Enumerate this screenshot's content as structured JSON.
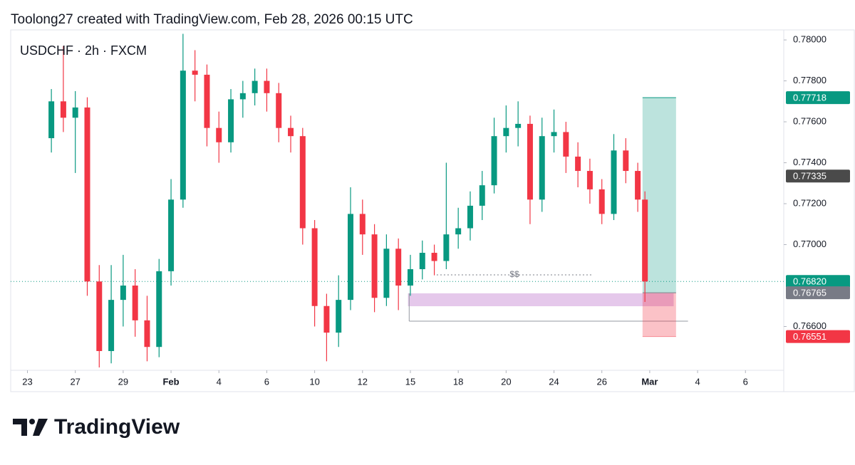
{
  "header": "Toolong27 created with TradingView.com, Feb 28, 2026 00:15 UTC",
  "chart_data": {
    "type": "candlestick",
    "title": "USDCHF · 2h · FXCM",
    "up_color": "#089981",
    "down_color": "#f23645",
    "xlim": [
      -0.7,
      31.6
    ],
    "ylim": [
      0.76386,
      0.78049
    ],
    "xticks": [
      {
        "value": 0,
        "label": "23"
      },
      {
        "value": 2,
        "label": "27"
      },
      {
        "value": 4,
        "label": "29"
      },
      {
        "value": 6,
        "label": "Feb",
        "bold": true
      },
      {
        "value": 8,
        "label": "4"
      },
      {
        "value": 10,
        "label": "6"
      },
      {
        "value": 12,
        "label": "10"
      },
      {
        "value": 14,
        "label": "12"
      },
      {
        "value": 16,
        "label": "15"
      },
      {
        "value": 18,
        "label": "18"
      },
      {
        "value": 20,
        "label": "20"
      },
      {
        "value": 22,
        "label": "24"
      },
      {
        "value": 24,
        "label": "26"
      },
      {
        "value": 26,
        "label": "Mar",
        "bold": true
      },
      {
        "value": 28,
        "label": "4"
      },
      {
        "value": 30,
        "label": "6"
      }
    ],
    "yticks": [
      {
        "value": 0.78,
        "label": "0.78000"
      },
      {
        "value": 0.778,
        "label": "0.77800"
      },
      {
        "value": 0.776,
        "label": "0.77600"
      },
      {
        "value": 0.774,
        "label": "0.77400"
      },
      {
        "value": 0.772,
        "label": "0.77200"
      },
      {
        "value": 0.77,
        "label": "0.77000"
      },
      {
        "value": 0.766,
        "label": "0.76600"
      }
    ],
    "x": [
      1,
      1.5,
      2,
      2.5,
      3,
      3.5,
      4,
      4.5,
      5,
      5.5,
      6,
      6.5,
      7,
      7.5,
      8,
      8.5,
      9,
      9.5,
      10,
      10.5,
      11,
      11.5,
      12,
      12.5,
      13,
      13.5,
      14,
      14.5,
      15,
      15.5,
      16,
      16.5,
      17,
      17.5,
      18,
      18.5,
      19,
      19.5,
      20,
      20.5,
      21,
      21.5,
      22,
      22.5,
      23,
      23.5,
      24,
      24.5,
      25,
      25.5,
      25.8
    ],
    "open": [
      0.7752,
      0.777,
      0.7762,
      0.7767,
      0.7682,
      0.7648,
      0.7673,
      0.768,
      0.7663,
      0.765,
      0.7687,
      0.7722,
      0.7785,
      0.7783,
      0.7757,
      0.775,
      0.7771,
      0.7774,
      0.778,
      0.7774,
      0.7757,
      0.7753,
      0.7708,
      0.767,
      0.7657,
      0.7673,
      0.7715,
      0.7705,
      0.7674,
      0.7698,
      0.768,
      0.7688,
      0.7696,
      0.7692,
      0.7705,
      0.7708,
      0.7719,
      0.7729,
      0.7753,
      0.7757,
      0.7759,
      0.7722,
      0.7753,
      0.7755,
      0.7743,
      0.7736,
      0.7727,
      0.7715,
      0.7746,
      0.7736,
      0.7722
    ],
    "high": [
      0.7776,
      0.7797,
      0.7775,
      0.7772,
      0.769,
      0.769,
      0.7695,
      0.7688,
      0.7675,
      0.7693,
      0.7732,
      0.7803,
      0.7795,
      0.7788,
      0.7765,
      0.7776,
      0.778,
      0.7786,
      0.7786,
      0.7779,
      0.7763,
      0.7757,
      0.7712,
      0.7676,
      0.7685,
      0.7728,
      0.7722,
      0.771,
      0.7705,
      0.7703,
      0.7695,
      0.7702,
      0.77,
      0.774,
      0.7718,
      0.7726,
      0.7736,
      0.7762,
      0.7768,
      0.777,
      0.7763,
      0.7762,
      0.7766,
      0.776,
      0.775,
      0.7742,
      0.7732,
      0.7754,
      0.7752,
      0.774,
      0.7726
    ],
    "low": [
      0.7745,
      0.7755,
      0.7735,
      0.7675,
      0.764,
      0.7642,
      0.766,
      0.7655,
      0.7643,
      0.7645,
      0.768,
      0.7718,
      0.777,
      0.7748,
      0.774,
      0.7745,
      0.7762,
      0.7768,
      0.7765,
      0.775,
      0.7745,
      0.77,
      0.766,
      0.7643,
      0.765,
      0.7668,
      0.7695,
      0.7667,
      0.767,
      0.7668,
      0.7675,
      0.7683,
      0.7685,
      0.7688,
      0.7698,
      0.7702,
      0.7712,
      0.7725,
      0.7745,
      0.7748,
      0.771,
      0.7716,
      0.7745,
      0.7735,
      0.7728,
      0.772,
      0.771,
      0.7712,
      0.773,
      0.7716,
      0.7672
    ],
    "close": [
      0.777,
      0.7762,
      0.7767,
      0.7682,
      0.7648,
      0.7673,
      0.768,
      0.7663,
      0.765,
      0.7687,
      0.7722,
      0.7785,
      0.7783,
      0.7757,
      0.775,
      0.7771,
      0.7774,
      0.778,
      0.7774,
      0.7757,
      0.7753,
      0.7708,
      0.767,
      0.7657,
      0.7673,
      0.7715,
      0.7705,
      0.7674,
      0.7698,
      0.768,
      0.7688,
      0.7696,
      0.7692,
      0.7705,
      0.7708,
      0.7719,
      0.7729,
      0.7753,
      0.7757,
      0.7759,
      0.7722,
      0.7753,
      0.7755,
      0.7743,
      0.7736,
      0.7727,
      0.7715,
      0.7746,
      0.7736,
      0.7722,
      0.7682
    ],
    "price_tags": [
      {
        "value": 0.77718,
        "label": "0.77718",
        "color": "#089981"
      },
      {
        "value": 0.77335,
        "label": "0.77335",
        "color": "#4a4a4a"
      },
      {
        "value": 0.7682,
        "label": "0.76820",
        "color": "#089981"
      },
      {
        "value": 0.76765,
        "label": "0.76765",
        "color": "#787b86"
      },
      {
        "value": 0.76551,
        "label": "0.76551",
        "color": "#f23645"
      }
    ],
    "current_price_tag": 2,
    "position": {
      "x": [
        25.7,
        27.1
      ],
      "entry": 0.76765,
      "target": 0.77718,
      "stop": 0.76551
    },
    "zone": {
      "x": [
        15.9,
        27.0
      ],
      "top": 0.76762,
      "bottom": 0.76699,
      "color": "#e1bee7"
    },
    "level_line": {
      "x": [
        15.95,
        27.6
      ],
      "value": 0.76626
    },
    "liquidity_line": {
      "x": [
        17.1,
        23.6
      ],
      "value": 0.76852,
      "label": "$$"
    }
  },
  "footer": {
    "brand": "TradingView"
  }
}
